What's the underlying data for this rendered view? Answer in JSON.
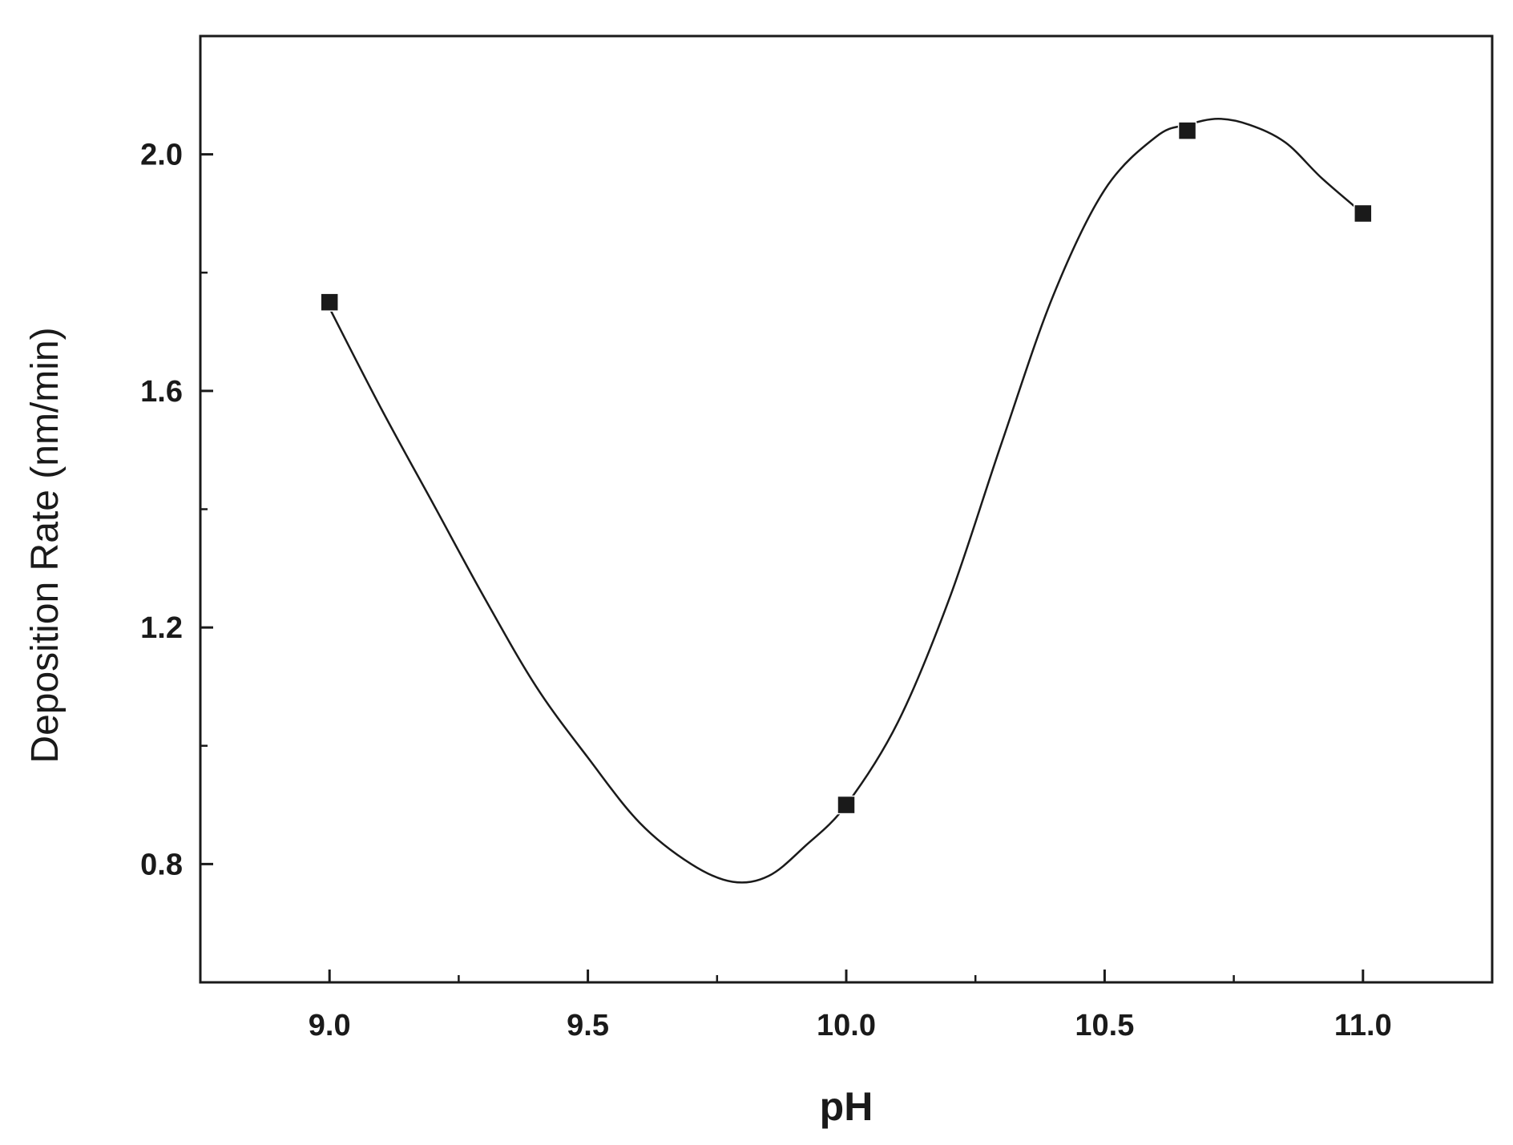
{
  "chart_data": {
    "type": "scatter",
    "title": "",
    "xlabel": "pH",
    "ylabel": "Deposition Rate (nm/min)",
    "xlim": [
      8.75,
      11.25
    ],
    "ylim": [
      0.6,
      2.2
    ],
    "x_ticks": [
      9.0,
      9.5,
      10.0,
      10.5,
      11.0
    ],
    "x_tick_labels": [
      "9.0",
      "9.5",
      "10.0",
      "10.5",
      "11.0"
    ],
    "x_minor_ticks": [
      9.25,
      9.75,
      10.25,
      10.75
    ],
    "y_ticks": [
      0.8,
      1.2,
      1.6,
      2.0
    ],
    "y_tick_labels": [
      "0.8",
      "1.2",
      "1.6",
      "2.0"
    ],
    "y_minor_ticks": [
      1.0,
      1.4,
      1.8
    ],
    "grid": false,
    "legend": "none",
    "series": [
      {
        "marker": "square",
        "color": "#1a1a1a",
        "smooth_fit_line": true,
        "x": [
          9.0,
          10.0,
          10.66,
          11.0
        ],
        "y": [
          1.75,
          0.9,
          2.04,
          1.9
        ]
      }
    ],
    "fit_curve": {
      "color": "#1a1a1a",
      "x": [
        9.0,
        9.1,
        9.2,
        9.3,
        9.4,
        9.5,
        9.6,
        9.7,
        9.78,
        9.85,
        9.92,
        10.0,
        10.1,
        10.2,
        10.3,
        10.4,
        10.5,
        10.6,
        10.66,
        10.72,
        10.78,
        10.85,
        10.92,
        11.0
      ],
      "y": [
        1.74,
        1.57,
        1.41,
        1.25,
        1.1,
        0.98,
        0.87,
        0.8,
        0.77,
        0.78,
        0.83,
        0.9,
        1.04,
        1.25,
        1.51,
        1.76,
        1.94,
        2.03,
        2.05,
        2.06,
        2.05,
        2.02,
        1.96,
        1.9
      ]
    }
  }
}
